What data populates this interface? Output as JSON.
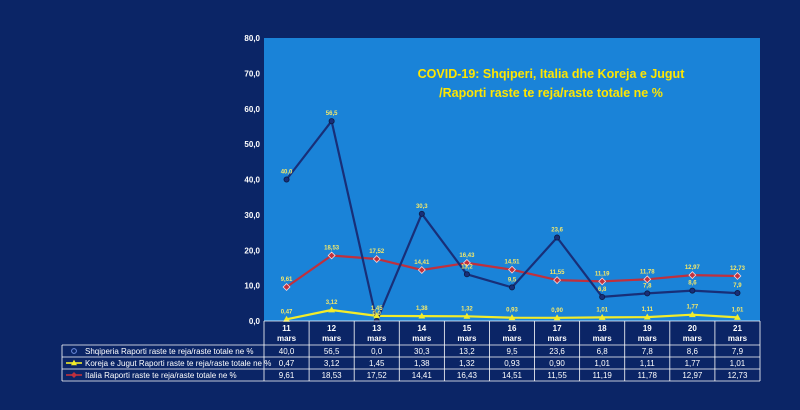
{
  "colors": {
    "background": "#0b2566",
    "plot_area": "#1a83d8",
    "albania": "#182f78",
    "korea": "#f2ec2a",
    "italy": "#c0303d",
    "title": "#ffe600"
  },
  "chart_data": {
    "type": "line",
    "title_line1": "COVID-19: Shqiperi, Italia dhe Koreja e Jugut",
    "title_line2": "/Raporti raste te reja/raste totale ne %",
    "ylim": [
      0,
      80
    ],
    "yticks": [
      "0,0",
      "10,0",
      "20,0",
      "30,0",
      "40,0",
      "50,0",
      "60,0",
      "70,0",
      "80,0"
    ],
    "grid": false,
    "legend": "data-table-below",
    "categories": [
      {
        "day": "11",
        "month": "mars"
      },
      {
        "day": "12",
        "month": "mars"
      },
      {
        "day": "13",
        "month": "mars"
      },
      {
        "day": "14",
        "month": "mars"
      },
      {
        "day": "15",
        "month": "mars"
      },
      {
        "day": "16",
        "month": "mars"
      },
      {
        "day": "17",
        "month": "mars"
      },
      {
        "day": "18",
        "month": "mars"
      },
      {
        "day": "19",
        "month": "mars"
      },
      {
        "day": "20",
        "month": "mars"
      },
      {
        "day": "21",
        "month": "mars"
      }
    ],
    "series": [
      {
        "name": "Shqiperia Raporti raste te reja/raste totale ne %",
        "color": "#182f78",
        "marker": "circle",
        "values": [
          40.0,
          56.5,
          0.0,
          30.3,
          13.2,
          9.5,
          23.6,
          6.8,
          7.8,
          8.6,
          7.9
        ],
        "labels": [
          "40,0",
          "56,5",
          "0,0",
          "30,3",
          "13,2",
          "9,5",
          "23,6",
          "6,8",
          "7,8",
          "8,6",
          "7,9"
        ]
      },
      {
        "name": "Koreja e Jugut Raporti raste te reja/raste totale ne %",
        "color": "#f2ec2a",
        "marker": "triangle",
        "values": [
          0.47,
          3.12,
          1.45,
          1.38,
          1.32,
          0.93,
          0.9,
          1.01,
          1.11,
          1.77,
          1.01
        ],
        "labels": [
          "0,47",
          "3,12",
          "1,45",
          "1,38",
          "1,32",
          "0,93",
          "0,90",
          "1,01",
          "1,11",
          "1,77",
          "1,01"
        ]
      },
      {
        "name": "Italia Raporti raste te reja/raste totale ne %",
        "color": "#c0303d",
        "marker": "diamond",
        "values": [
          9.61,
          18.53,
          17.52,
          14.41,
          16.43,
          14.51,
          11.55,
          11.19,
          11.78,
          12.97,
          12.73
        ],
        "labels": [
          "9,61",
          "18,53",
          "17,52",
          "14,41",
          "16,43",
          "14,51",
          "11,55",
          "11,19",
          "11,78",
          "12,97",
          "12,73"
        ]
      }
    ]
  }
}
